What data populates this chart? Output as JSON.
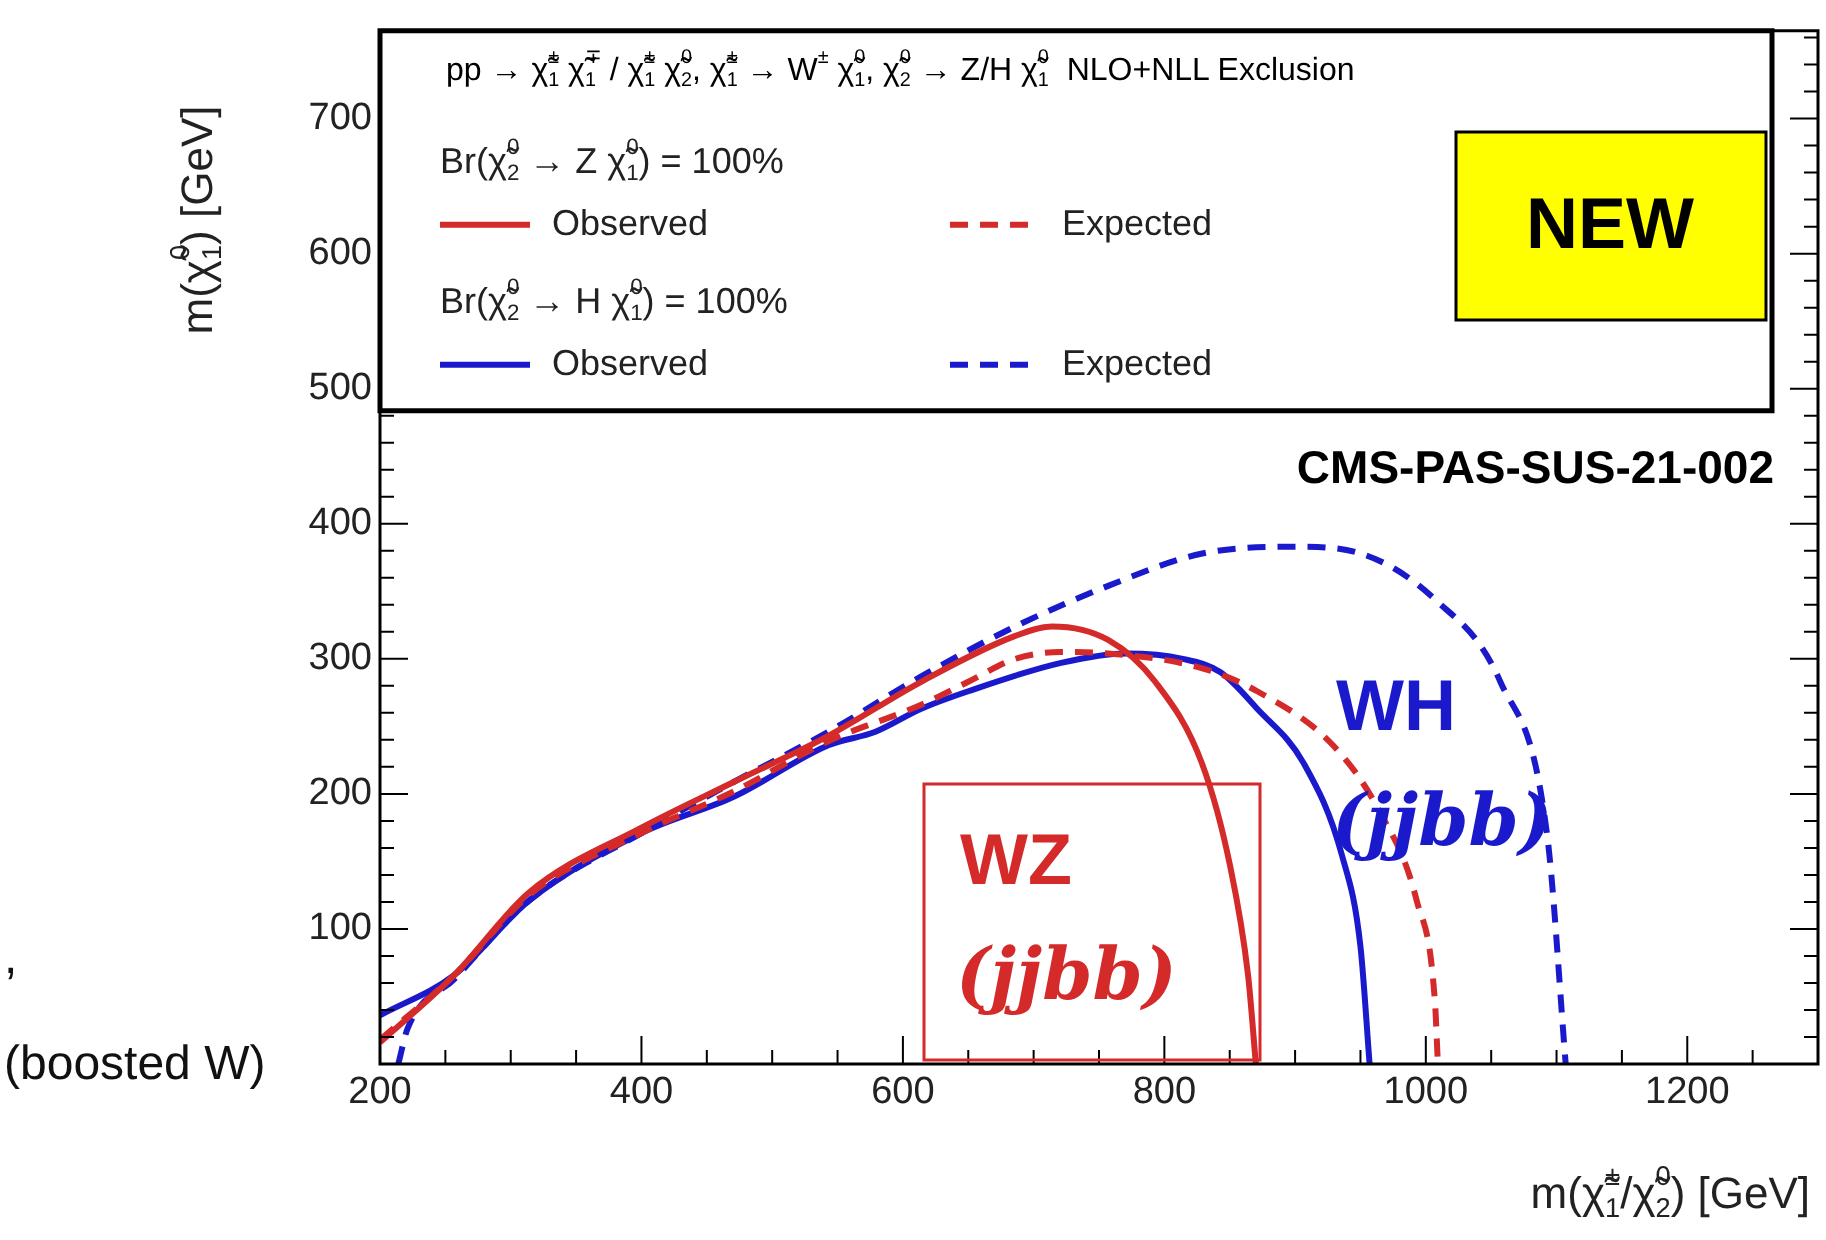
{
  "chart_data": {
    "type": "line",
    "xlabel": "m(χ̃$_{1}$$^{±}$/χ̃$_{2}$$^{0}$) [GeV]",
    "ylabel": "m(χ̃$_{1}$$^{0}$) [GeV]",
    "legend_title": "pp → χ̃$_{1}$$^{±}$ χ̃$_{1}$$^{∓}$ / χ̃$_{1}$$^{±}$ χ̃$_{2}$$^{0}$, χ̃$_{1}$$^{±}$ → W$^{±}$ χ̃$_{1}$$^{0}$, χ̃$_{2}$$^{0}$ → Z/H χ̃$_{1}$$^{0}$  NLO+NLL Exclusion",
    "legend": "top",
    "marker": "none",
    "grid": false,
    "xlim": [
      200,
      1300
    ],
    "xticks": [
      200,
      400,
      600,
      800,
      1000,
      1200
    ],
    "ylim": [
      0,
      765
    ],
    "yticks": [
      100,
      200,
      300,
      400,
      500,
      600,
      700
    ],
    "series": [
      {
        "name": "Observed",
        "color": "#d42a2a",
        "line_style": "solid",
        "x": [
          200,
          257,
          314,
          400,
          471,
          543,
          614,
          686,
          714,
          757,
          793,
          829,
          850,
          864,
          870
        ],
        "values": [
          16,
          66,
          127,
          175,
          209,
          243,
          283,
          317,
          324,
          314,
          283,
          222,
          148,
          66,
          0
        ]
      },
      {
        "name": "Expected",
        "color": "#d42a2a",
        "line_style": "dashed",
        "x": [
          200,
          257,
          314,
          400,
          471,
          543,
          614,
          650,
          686,
          721,
          757,
          829,
          871,
          929,
          964,
          993,
          1007,
          1009
        ],
        "values": [
          18,
          66,
          125,
          171,
          202,
          239,
          266,
          283,
          300,
          305,
          304,
          293,
          276,
          236,
          188,
          121,
          46,
          5
        ]
      },
      {
        "name": "Observed",
        "color": "#1a1acc",
        "line_style": "solid",
        "x": [
          200,
          257,
          314,
          400,
          471,
          543,
          579,
          614,
          650,
          721,
          771,
          814,
          843,
          871,
          907,
          936,
          950,
          957
        ],
        "values": [
          36,
          66,
          121,
          171,
          198,
          236,
          246,
          263,
          276,
          297,
          304,
          300,
          290,
          263,
          222,
          154,
          87,
          0
        ]
      },
      {
        "name": "Expected",
        "color": "#1a1acc",
        "line_style": "dashed",
        "x": [
          214,
          221,
          257,
          314,
          400,
          471,
          543,
          614,
          686,
          757,
          829,
          900,
          950,
          1007,
          1057,
          1093,
          1107
        ],
        "values": [
          0,
          26,
          63,
          121,
          171,
          209,
          246,
          287,
          324,
          354,
          378,
          383,
          378,
          344,
          283,
          168,
          0
        ]
      }
    ],
    "annotations": [
      "Br(χ̃$_{2}$$^{0}$ → Z χ̃$_{1}$$^{0}$) = 100%",
      "Br(χ̃$_{2}$$^{0}$ → H χ̃$_{1}$$^{0}$) = 100%",
      "CMS-PAS-SUS-21-002",
      "NEW",
      "(boosted W)",
      ",",
      "WZ (jjbb)",
      "WH (jjbb)"
    ]
  }
}
